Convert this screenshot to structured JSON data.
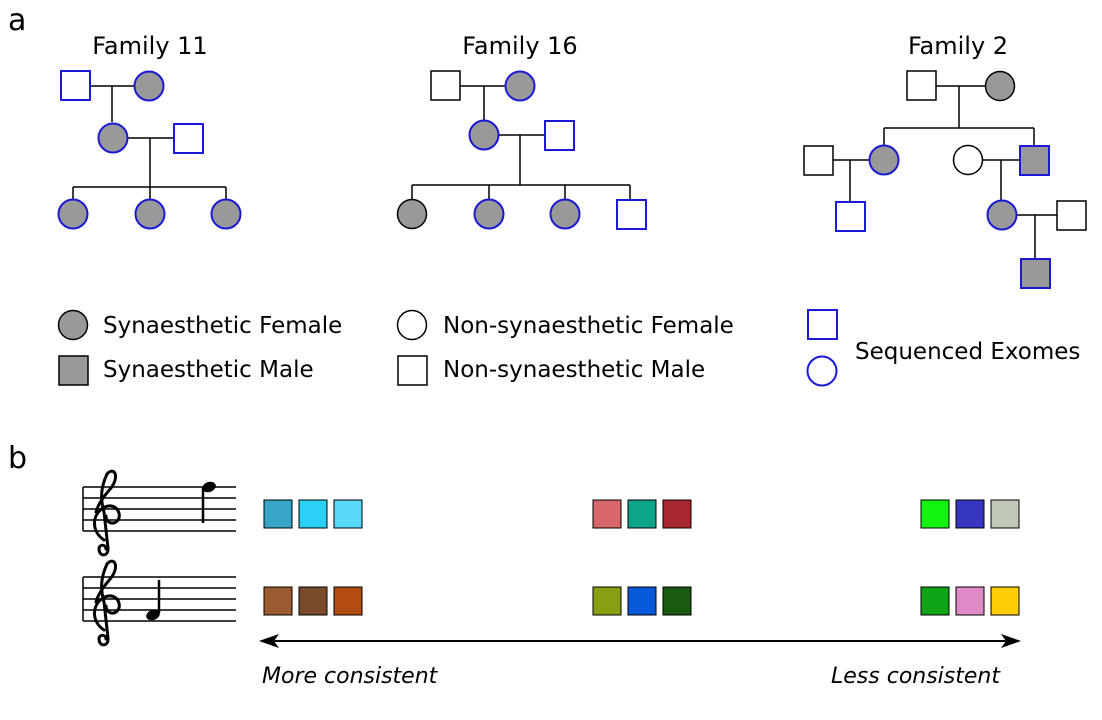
{
  "panel_a": {
    "label": "a",
    "families": [
      {
        "id": "fam11",
        "title": "Family 11"
      },
      {
        "id": "fam16",
        "title": "Family 16"
      },
      {
        "id": "fam2",
        "title": "Family 2"
      }
    ],
    "legend": {
      "synaesthetic_female": "Synaesthetic Female",
      "synaesthetic_male": "Synaesthetic Male",
      "non_synaesthetic_female": "Non-synaesthetic Female",
      "non_synaesthetic_male": "Non-synaesthetic Male",
      "sequenced_exomes": "Sequenced Exomes"
    },
    "colors": {
      "affected_fill": "#999999",
      "sequenced_stroke": "#1a1ad6",
      "default_stroke": "#000000"
    }
  },
  "panel_b": {
    "label": "b",
    "axis_left": "More consistent",
    "axis_right": "Less consistent",
    "rows": [
      {
        "note": "high-note",
        "groups": [
          [
            "#37a6c7",
            "#2ad0f5",
            "#56d9f7"
          ],
          [
            "#d9666a",
            "#0ea489",
            "#a8262f"
          ],
          [
            "#12f40f",
            "#3636c0",
            "#c0c8b8"
          ]
        ]
      },
      {
        "note": "low-note",
        "groups": [
          [
            "#9a5b30",
            "#7a4a2a",
            "#b24c10"
          ],
          [
            "#86a012",
            "#0858da",
            "#1a5a10"
          ],
          [
            "#0fa418",
            "#e18ac8",
            "#ffcc06"
          ]
        ]
      }
    ]
  }
}
